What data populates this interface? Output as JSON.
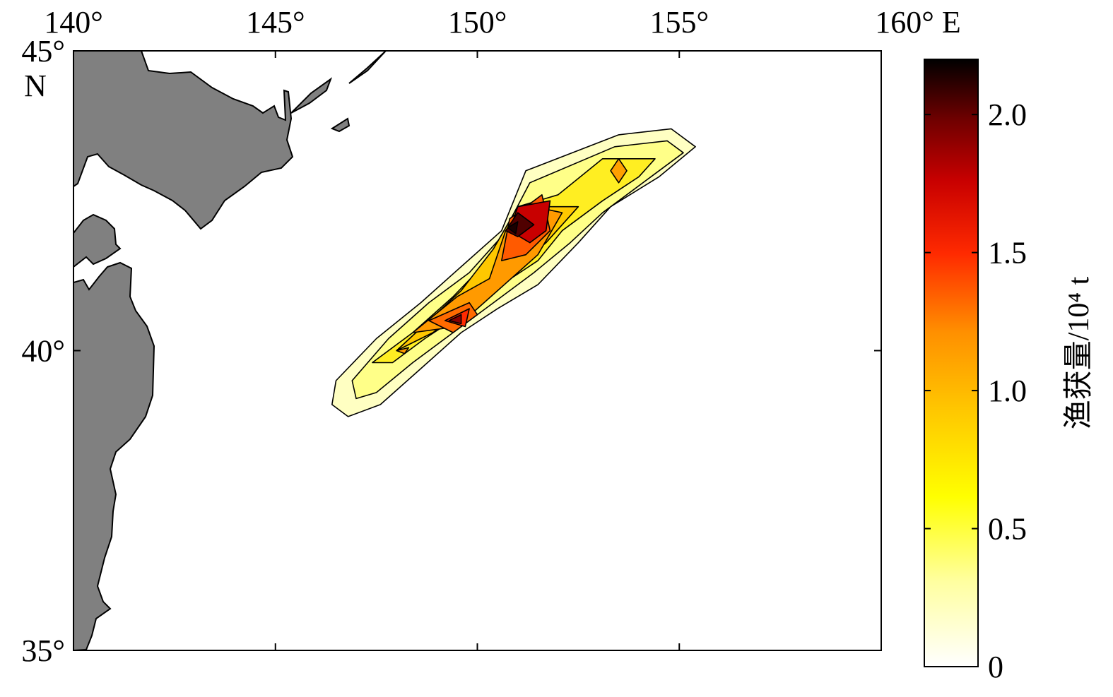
{
  "chart_data": {
    "type": "heatmap",
    "subtype": "filled-contour-map",
    "x_axis": {
      "range": [
        140,
        160
      ],
      "tick_values": [
        140,
        145,
        150,
        155,
        160
      ],
      "tick_labels": [
        "140°",
        "145°",
        "150°",
        "155°",
        "160° E"
      ],
      "position": "top"
    },
    "y_axis": {
      "range": [
        35,
        45
      ],
      "tick_values": [
        35,
        40,
        45
      ],
      "tick_labels": [
        "35°",
        "40°",
        "45°"
      ],
      "unit_label": "N"
    },
    "grid": false,
    "land_color": "#808080",
    "ocean_color": "#ffffff",
    "colormap": "hot (reversed)",
    "colorbar": {
      "range": [
        0,
        2.2
      ],
      "tick_values": [
        0,
        0.5,
        1.0,
        1.5,
        2.0
      ],
      "tick_labels": [
        "0",
        "0.5",
        "1.0",
        "1.5",
        "2.0"
      ],
      "title": "渔获量/10⁴ t",
      "placement": "right"
    },
    "contour_levels": [
      0.15,
      0.3,
      0.5,
      0.7,
      0.9,
      1.1,
      1.3,
      1.5,
      1.7,
      1.9,
      2.1
    ],
    "catch_hotspots": [
      {
        "lon": 150.8,
        "lat": 42.0,
        "value": 2.2
      },
      {
        "lon": 151.3,
        "lat": 42.3,
        "value": 1.85
      },
      {
        "lon": 149.5,
        "lat": 40.5,
        "value": 1.7
      },
      {
        "lon": 148.2,
        "lat": 40.0,
        "value": 1.1
      },
      {
        "lon": 153.5,
        "lat": 43.0,
        "value": 1.0
      }
    ]
  },
  "colors": {
    "axis": "#000000",
    "land": "#808080",
    "contour_line": "#000000"
  }
}
